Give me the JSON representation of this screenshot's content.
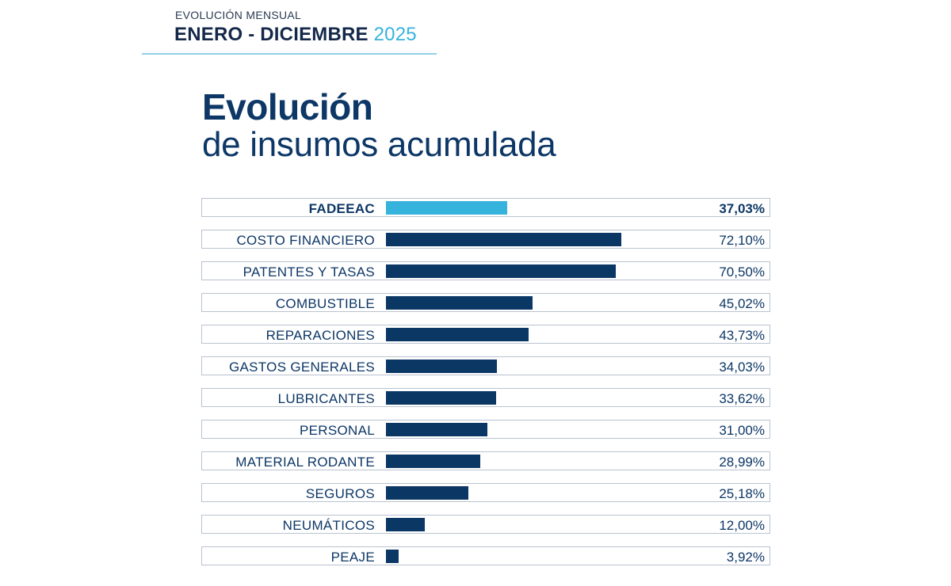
{
  "header": {
    "kicker": "EVOLUCIÓN MENSUAL",
    "period": "ENERO - DICIEMBRE",
    "year": "2025"
  },
  "title": {
    "line1": "Evolución",
    "line2": "de insumos acumulada"
  },
  "colors": {
    "primary": "#0b3765",
    "highlight": "#35b3dd",
    "border": "#b9c3cf"
  },
  "chart_data": {
    "type": "bar",
    "orientation": "horizontal",
    "title": "Evolución de insumos acumulada",
    "subtitle": "ENERO - DICIEMBRE 2025",
    "xlabel": "",
    "ylabel": "",
    "xlim": [
      0,
      80
    ],
    "grid": false,
    "unit": "%",
    "categories": [
      "FADEEAC",
      "COSTO FINANCIERO",
      "PATENTES Y TASAS",
      "COMBUSTIBLE",
      "REPARACIONES",
      "GASTOS GENERALES",
      "LUBRICANTES",
      "PERSONAL",
      "MATERIAL RODANTE",
      "SEGUROS",
      "NEUMÁTICOS",
      "PEAJE"
    ],
    "values": [
      37.03,
      72.1,
      70.5,
      45.02,
      43.73,
      34.03,
      33.62,
      31.0,
      28.99,
      25.18,
      12.0,
      3.92
    ],
    "value_labels": [
      "37,03%",
      "72,10%",
      "70,50%",
      "45,02%",
      "43,73%",
      "34,03%",
      "33,62%",
      "31,00%",
      "28,99%",
      "25,18%",
      "12,00%",
      "3,92%"
    ],
    "highlighted": [
      "FADEEAC"
    ]
  }
}
